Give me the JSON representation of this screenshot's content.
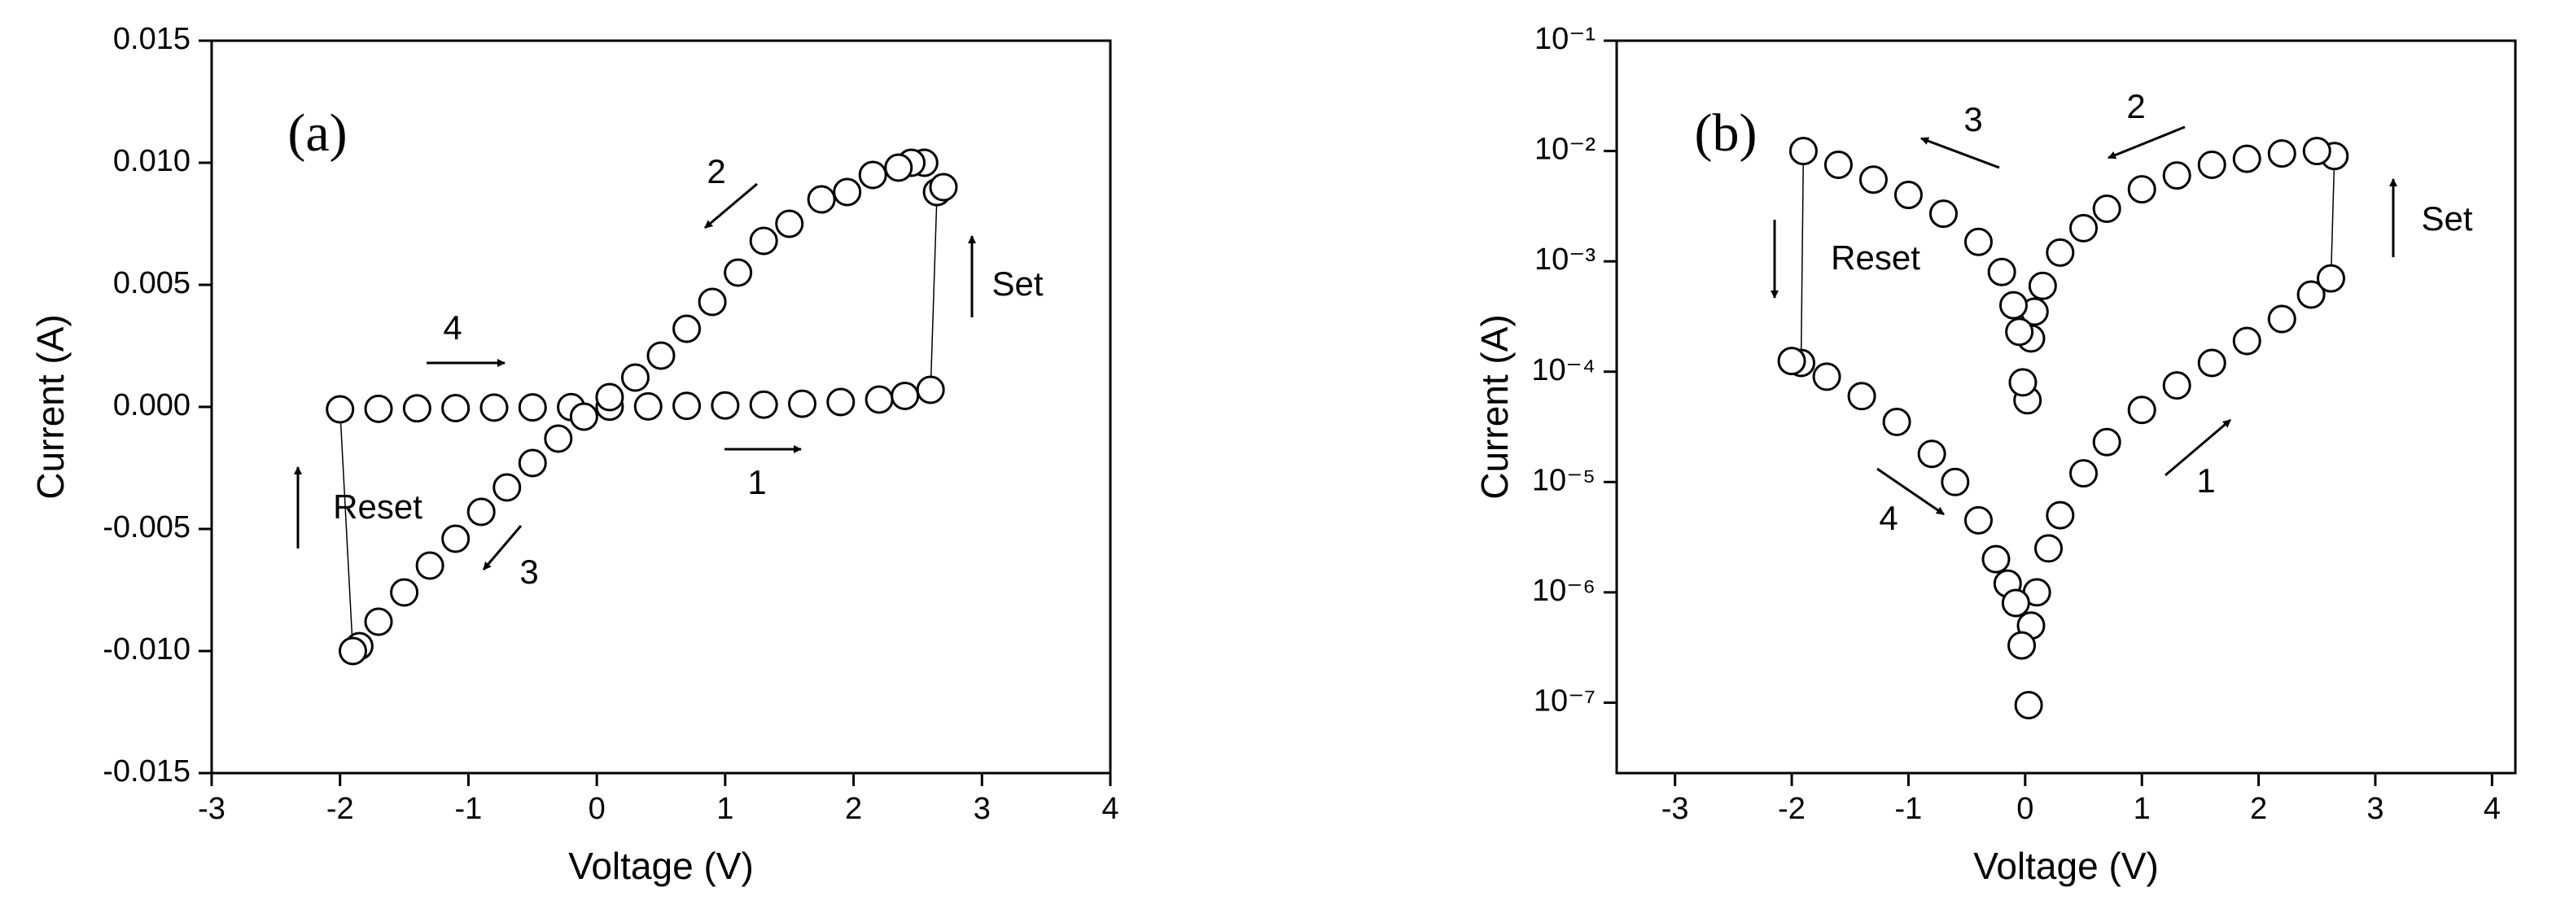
{
  "chart_data": [
    {
      "type": "scatter",
      "panel_label": "(a)",
      "x_label": "Voltage (V)",
      "y_label": "Current (A)",
      "xlim": [
        -3,
        4
      ],
      "xticks": [
        -3,
        -2,
        -1,
        0,
        1,
        2,
        3,
        4
      ],
      "ylim": [
        -0.015,
        0.015
      ],
      "yticks": [
        -0.015,
        {
          "value": -0.01,
          "label": "-0.010"
        },
        -0.005,
        {
          "value": 0,
          "label": "0.000"
        },
        0.005,
        {
          "value": 0.01,
          "label": "0.010"
        },
        0.015
      ],
      "log_y": false,
      "color": "#000000",
      "marker_face": "#ffffff",
      "annotations": [
        "2",
        "4",
        "Set",
        "1",
        "Reset",
        "3"
      ],
      "x": [
        -2.0,
        -1.7,
        -1.4,
        -1.1,
        -0.8,
        -0.5,
        -0.2,
        0.1,
        0.4,
        0.7,
        1.0,
        1.3,
        1.6,
        1.9,
        2.2,
        2.4,
        2.6,
        2.65,
        2.7,
        2.55,
        2.45,
        2.35,
        2.15,
        1.95,
        1.75,
        1.5,
        1.3,
        1.1,
        0.9,
        0.7,
        0.5,
        0.3,
        0.1,
        -0.1,
        -0.3,
        -0.5,
        -0.7,
        -0.9,
        -1.1,
        -1.3,
        -1.5,
        -1.7,
        -1.85,
        -1.9
      ],
      "values": [
        -0.0001,
        -8e-05,
        -6e-05,
        -5e-05,
        -3e-05,
        -2e-05,
        -1e-05,
        1e-05,
        2e-05,
        4e-05,
        6e-05,
        9e-05,
        0.00013,
        0.0002,
        0.0003,
        0.00045,
        0.0007,
        0.0088,
        0.009,
        0.01,
        0.01,
        0.0098,
        0.0095,
        0.0088,
        0.0085,
        0.0075,
        0.0068,
        0.0055,
        0.0043,
        0.0032,
        0.0021,
        0.0012,
        0.0004,
        -0.0004,
        -0.0013,
        -0.0023,
        -0.0033,
        -0.0043,
        -0.0054,
        -0.0065,
        -0.0076,
        -0.0088,
        -0.0098,
        -0.01
      ]
    },
    {
      "type": "scatter",
      "panel_label": "(b)",
      "x_label": "Voltage (V)",
      "y_label": "Current (A)",
      "xlim": [
        -3.5,
        4.2
      ],
      "xticks": [
        -3,
        -2,
        -1,
        0,
        1,
        2,
        3,
        4
      ],
      "ylim": [
        2.3e-08,
        0.1
      ],
      "yticks": [
        {
          "value": 1e-07,
          "label": "10⁻⁷"
        },
        {
          "value": 1e-06,
          "label": "10⁻⁶"
        },
        {
          "value": 1e-05,
          "label": "10⁻⁵"
        },
        {
          "value": 0.0001,
          "label": "10⁻⁴"
        },
        {
          "value": 0.001,
          "label": "10⁻³"
        },
        {
          "value": 0.01,
          "label": "10⁻²"
        },
        {
          "value": 0.1,
          "label": "10⁻¹"
        }
      ],
      "log_y": true,
      "color": "#000000",
      "marker_face": "#ffffff",
      "annotations": [
        "3",
        "2",
        "Set",
        "Reset",
        "4",
        "1"
      ],
      "x": [
        0.03,
        0.05,
        0.1,
        0.2,
        0.3,
        0.5,
        0.7,
        1.0,
        1.3,
        1.6,
        1.9,
        2.2,
        2.45,
        2.62,
        2.65,
        2.5,
        2.2,
        1.9,
        1.6,
        1.3,
        1.0,
        0.7,
        0.5,
        0.3,
        0.15,
        0.08,
        0.05,
        0.02,
        -0.02,
        -0.05,
        -0.1,
        -0.2,
        -0.4,
        -0.7,
        -1.0,
        -1.3,
        -1.6,
        -1.9,
        -1.92,
        -2.0,
        -1.7,
        -1.4,
        -1.1,
        -0.8,
        -0.6,
        -0.4,
        -0.25,
        -0.15,
        -0.08,
        -0.03
      ],
      "values": [
        9.5e-08,
        5e-07,
        1e-06,
        2.5e-06,
        5e-06,
        1.2e-05,
        2.3e-05,
        4.5e-05,
        7.5e-05,
        0.00012,
        0.00019,
        0.0003,
        0.0005,
        0.0007,
        0.009,
        0.01,
        0.0095,
        0.0085,
        0.0075,
        0.006,
        0.0045,
        0.003,
        0.002,
        0.0012,
        0.0006,
        0.00035,
        0.0002,
        5.5e-05,
        8e-05,
        0.00023,
        0.0004,
        0.0008,
        0.0015,
        0.0027,
        0.004,
        0.0055,
        0.0075,
        0.01,
        0.00012,
        0.000125,
        9e-05,
        6e-05,
        3.5e-05,
        1.8e-05,
        1e-05,
        4.5e-06,
        2e-06,
        1.2e-06,
        8e-07,
        3.3e-07
      ]
    }
  ]
}
